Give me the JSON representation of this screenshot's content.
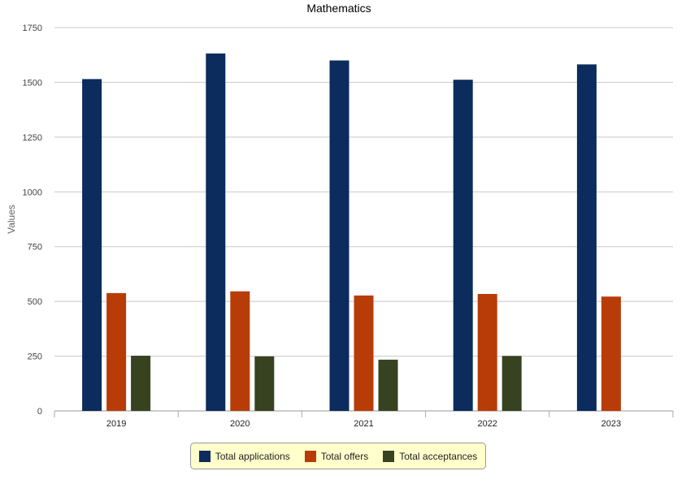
{
  "chart_data": {
    "type": "bar",
    "title": "Mathematics",
    "xlabel": "",
    "ylabel": "Values",
    "categories": [
      "2019",
      "2020",
      "2021",
      "2022",
      "2023"
    ],
    "yticks": [
      "0",
      "250",
      "500",
      "750",
      "1000",
      "1250",
      "1500",
      "1750"
    ],
    "ylim": [
      0,
      1750
    ],
    "grid": true,
    "legend_position": "bottom",
    "series": [
      {
        "name": "Total applications",
        "color": "#0b2c5c",
        "values": [
          1515,
          1632,
          1600,
          1512,
          1582
        ]
      },
      {
        "name": "Total offers",
        "color": "#b83c08",
        "values": [
          538,
          546,
          527,
          534,
          522
        ]
      },
      {
        "name": "Total acceptances",
        "color": "#374320",
        "values": [
          252,
          249,
          234,
          251,
          null
        ]
      }
    ]
  }
}
